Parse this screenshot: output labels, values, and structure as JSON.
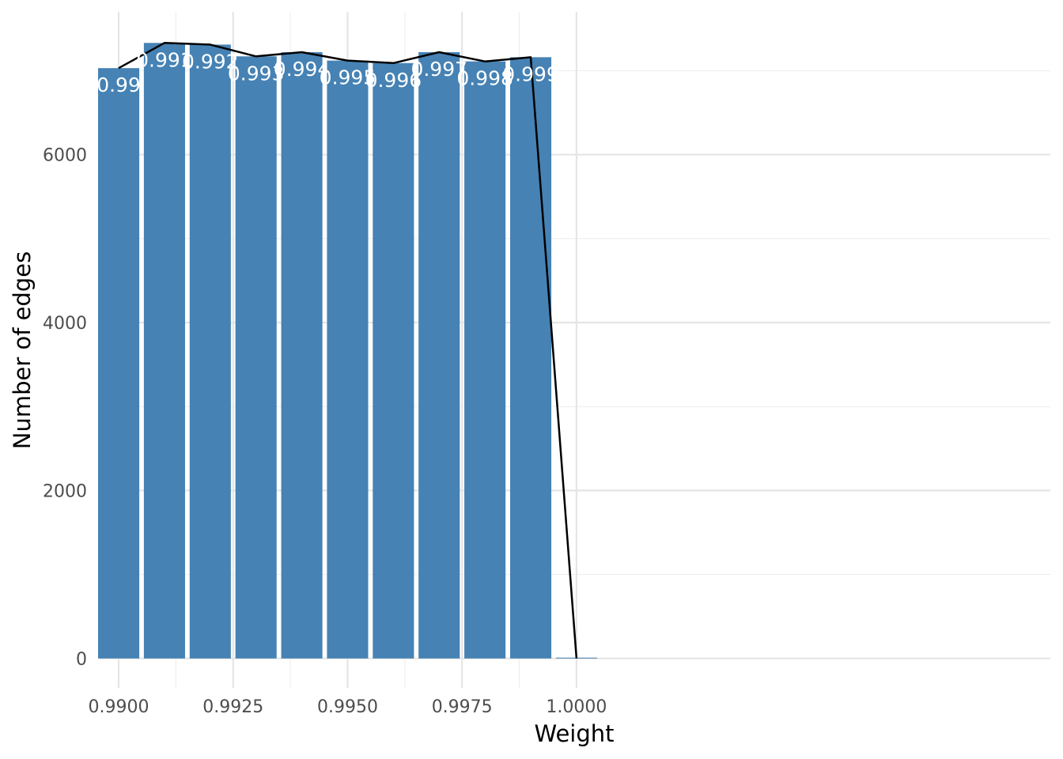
{
  "chart_data": {
    "type": "bar",
    "title": "",
    "xlabel": "Weight",
    "ylabel": "Number of edges",
    "x": [
      0.99,
      0.991,
      0.992,
      0.993,
      0.994,
      0.995,
      0.996,
      0.997,
      0.998,
      0.999,
      1.0
    ],
    "values": [
      7030,
      7330,
      7310,
      7170,
      7220,
      7120,
      7090,
      7220,
      7110,
      7160,
      0
    ],
    "data_labels": [
      "0.99",
      "0.991",
      "0.992",
      "0.993",
      "0.994",
      "0.995",
      "0.996",
      "0.997",
      "0.998",
      "0.999",
      ""
    ],
    "line_overlay": {
      "x": [
        0.99,
        0.991,
        0.992,
        0.993,
        0.994,
        0.995,
        0.996,
        0.997,
        0.998,
        0.999,
        1.0
      ],
      "values": [
        7030,
        7330,
        7310,
        7170,
        7220,
        7120,
        7090,
        7220,
        7110,
        7160,
        0
      ],
      "color": "#000000"
    },
    "xlim": [
      0.98955,
      1.01035
    ],
    "ylim": [
      -350,
      7700
    ],
    "x_ticks": [
      0.99,
      0.9925,
      0.995,
      0.9975,
      1.0
    ],
    "x_tick_labels": [
      "0.9900",
      "0.9925",
      "0.9950",
      "0.9975",
      "1.0000"
    ],
    "y_ticks": [
      0,
      2000,
      4000,
      6000
    ],
    "y_tick_labels": [
      "0",
      "2000",
      "4000",
      "6000"
    ],
    "grid": true,
    "bar_color": "#4682b4",
    "bar_width": 0.0009
  }
}
